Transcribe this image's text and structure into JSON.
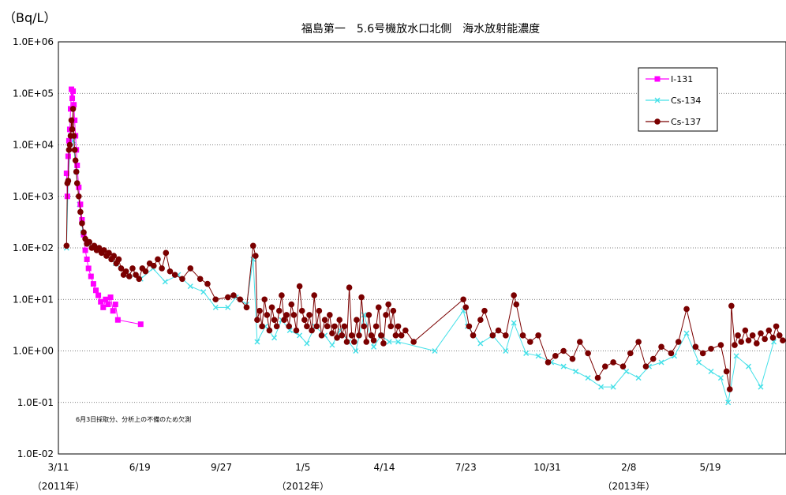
{
  "chart_data": {
    "type": "scatter",
    "title": "福島第一　5.6号機放水口北側　海水放射能濃度",
    "unit_label": "（Bq/L）",
    "y_scale": "log",
    "ylim": [
      0.01,
      1000000
    ],
    "y_ticks": [
      "1.0E+06",
      "1.0E+05",
      "1.0E+04",
      "1.0E+03",
      "1.0E+02",
      "1.0E+01",
      "1.0E+00",
      "1.0E-01",
      "1.0E-02"
    ],
    "x_ticks": [
      "3/11",
      "6/19",
      "9/27",
      "1/5",
      "4/14",
      "7/23",
      "10/31",
      "2/8",
      "5/19"
    ],
    "year_labels": [
      {
        "label": "（2011年）",
        "at": "2011-03-11"
      },
      {
        "label": "（2012年）",
        "at": "2012-01-05"
      },
      {
        "label": "（2013年）",
        "at": "2013-02-08"
      }
    ],
    "xlim": [
      "2011-03-11",
      "2013-08-20"
    ],
    "grid": "horizontal dotted",
    "legend_position": "top-right",
    "annotation": "6月3日採取分、分析上の不備のため欠測",
    "series": [
      {
        "name": "I-131",
        "color": "#ff00ff",
        "marker": "square",
        "points": [
          [
            "2011-03-21",
            2800
          ],
          [
            "2011-03-22",
            1000
          ],
          [
            "2011-03-23",
            6000
          ],
          [
            "2011-03-24",
            12000
          ],
          [
            "2011-03-25",
            20000
          ],
          [
            "2011-03-26",
            50000
          ],
          [
            "2011-03-27",
            120000
          ],
          [
            "2011-03-28",
            80000
          ],
          [
            "2011-03-29",
            110000
          ],
          [
            "2011-03-30",
            60000
          ],
          [
            "2011-03-31",
            30000
          ],
          [
            "2011-04-01",
            15000
          ],
          [
            "2011-04-02",
            8000
          ],
          [
            "2011-04-03",
            4000
          ],
          [
            "2011-04-05",
            1500
          ],
          [
            "2011-04-07",
            700
          ],
          [
            "2011-04-09",
            350
          ],
          [
            "2011-04-11",
            180
          ],
          [
            "2011-04-13",
            90
          ],
          [
            "2011-04-15",
            60
          ],
          [
            "2011-04-17",
            40
          ],
          [
            "2011-04-20",
            28
          ],
          [
            "2011-04-23",
            20
          ],
          [
            "2011-04-26",
            15
          ],
          [
            "2011-04-29",
            12
          ],
          [
            "2011-05-02",
            9
          ],
          [
            "2011-05-05",
            7
          ],
          [
            "2011-05-08",
            10
          ],
          [
            "2011-05-11",
            8
          ],
          [
            "2011-05-14",
            11
          ],
          [
            "2011-05-17",
            6
          ],
          [
            "2011-05-20",
            8
          ],
          [
            "2011-05-23",
            4
          ],
          [
            "2011-06-20",
            3.3
          ]
        ]
      },
      {
        "name": "Cs-134",
        "color": "#44e0e8",
        "marker": "x",
        "points": [
          [
            "2011-03-21",
            100
          ],
          [
            "2011-03-23",
            2000
          ],
          [
            "2011-03-26",
            15000
          ],
          [
            "2011-03-29",
            12000
          ],
          [
            "2011-04-02",
            3000
          ],
          [
            "2011-04-06",
            700
          ],
          [
            "2011-04-10",
            200
          ],
          [
            "2011-04-15",
            120
          ],
          [
            "2011-04-25",
            100
          ],
          [
            "2011-05-05",
            80
          ],
          [
            "2011-05-20",
            50
          ],
          [
            "2011-06-05",
            30
          ],
          [
            "2011-06-20",
            25
          ],
          [
            "2011-07-05",
            40
          ],
          [
            "2011-07-20",
            22
          ],
          [
            "2011-08-05",
            30
          ],
          [
            "2011-08-20",
            18
          ],
          [
            "2011-09-05",
            14
          ],
          [
            "2011-09-20",
            7
          ],
          [
            "2011-10-05",
            7
          ],
          [
            "2011-10-15",
            11
          ],
          [
            "2011-10-28",
            8
          ],
          [
            "2011-11-05",
            60
          ],
          [
            "2011-11-10",
            1.5
          ],
          [
            "2011-11-20",
            3
          ],
          [
            "2011-12-01",
            1.8
          ],
          [
            "2011-12-10",
            4
          ],
          [
            "2011-12-20",
            2.5
          ],
          [
            "2012-01-01",
            2
          ],
          [
            "2012-01-10",
            1.4
          ],
          [
            "2012-01-20",
            3
          ],
          [
            "2012-02-01",
            2
          ],
          [
            "2012-02-10",
            1.3
          ],
          [
            "2012-02-20",
            2.5
          ],
          [
            "2012-03-01",
            1.5
          ],
          [
            "2012-03-10",
            1
          ],
          [
            "2012-03-20",
            5
          ],
          [
            "2012-04-01",
            1.2
          ],
          [
            "2012-04-10",
            2
          ],
          [
            "2012-04-20",
            1.5
          ],
          [
            "2012-05-01",
            1.5
          ],
          [
            "2012-06-15",
            1
          ],
          [
            "2012-07-20",
            6
          ],
          [
            "2012-07-25",
            3
          ],
          [
            "2012-08-10",
            1.4
          ],
          [
            "2012-08-25",
            2
          ],
          [
            "2012-09-10",
            1
          ],
          [
            "2012-09-20",
            3.5
          ],
          [
            "2012-10-05",
            0.9
          ],
          [
            "2012-10-20",
            0.8
          ],
          [
            "2012-11-05",
            0.6
          ],
          [
            "2012-11-20",
            0.5
          ],
          [
            "2012-12-05",
            0.4
          ],
          [
            "2012-12-20",
            0.3
          ],
          [
            "2013-01-05",
            0.2
          ],
          [
            "2013-01-20",
            0.2
          ],
          [
            "2013-02-05",
            0.4
          ],
          [
            "2013-02-20",
            0.3
          ],
          [
            "2013-03-05",
            0.5
          ],
          [
            "2013-03-20",
            0.6
          ],
          [
            "2013-04-05",
            0.8
          ],
          [
            "2013-04-20",
            2.2
          ],
          [
            "2013-05-05",
            0.6
          ],
          [
            "2013-05-20",
            0.4
          ],
          [
            "2013-06-01",
            0.3
          ],
          [
            "2013-06-10",
            0.1
          ],
          [
            "2013-06-20",
            0.8
          ],
          [
            "2013-07-05",
            0.5
          ],
          [
            "2013-07-20",
            0.2
          ],
          [
            "2013-08-05",
            1.5
          ]
        ]
      },
      {
        "name": "Cs-137",
        "color": "#7a0000",
        "marker": "circle",
        "points": [
          [
            "2011-03-21",
            110
          ],
          [
            "2011-03-22",
            1800
          ],
          [
            "2011-03-23",
            2000
          ],
          [
            "2011-03-24",
            8000
          ],
          [
            "2011-03-25",
            10000
          ],
          [
            "2011-03-26",
            15000
          ],
          [
            "2011-03-27",
            30000
          ],
          [
            "2011-03-28",
            20000
          ],
          [
            "2011-03-29",
            50000
          ],
          [
            "2011-03-30",
            15000
          ],
          [
            "2011-03-31",
            8000
          ],
          [
            "2011-04-01",
            5000
          ],
          [
            "2011-04-02",
            3000
          ],
          [
            "2011-04-03",
            1800
          ],
          [
            "2011-04-05",
            1000
          ],
          [
            "2011-04-07",
            500
          ],
          [
            "2011-04-09",
            300
          ],
          [
            "2011-04-11",
            200
          ],
          [
            "2011-04-13",
            150
          ],
          [
            "2011-04-15",
            120
          ],
          [
            "2011-04-18",
            130
          ],
          [
            "2011-04-21",
            100
          ],
          [
            "2011-04-24",
            110
          ],
          [
            "2011-04-27",
            90
          ],
          [
            "2011-04-30",
            100
          ],
          [
            "2011-05-03",
            80
          ],
          [
            "2011-05-06",
            90
          ],
          [
            "2011-05-09",
            70
          ],
          [
            "2011-05-12",
            80
          ],
          [
            "2011-05-15",
            60
          ],
          [
            "2011-05-18",
            70
          ],
          [
            "2011-05-21",
            50
          ],
          [
            "2011-05-24",
            60
          ],
          [
            "2011-05-27",
            40
          ],
          [
            "2011-05-30",
            30
          ],
          [
            "2011-06-02",
            35
          ],
          [
            "2011-06-06",
            28
          ],
          [
            "2011-06-10",
            40
          ],
          [
            "2011-06-14",
            30
          ],
          [
            "2011-06-18",
            25
          ],
          [
            "2011-06-22",
            40
          ],
          [
            "2011-06-26",
            35
          ],
          [
            "2011-07-01",
            50
          ],
          [
            "2011-07-06",
            45
          ],
          [
            "2011-07-11",
            60
          ],
          [
            "2011-07-16",
            40
          ],
          [
            "2011-07-21",
            80
          ],
          [
            "2011-07-26",
            35
          ],
          [
            "2011-08-01",
            30
          ],
          [
            "2011-08-10",
            25
          ],
          [
            "2011-08-20",
            40
          ],
          [
            "2011-09-01",
            25
          ],
          [
            "2011-09-10",
            20
          ],
          [
            "2011-09-20",
            10
          ],
          [
            "2011-10-05",
            11
          ],
          [
            "2011-10-12",
            12
          ],
          [
            "2011-10-20",
            10
          ],
          [
            "2011-10-28",
            7
          ],
          [
            "2011-11-05",
            110
          ],
          [
            "2011-11-08",
            70
          ],
          [
            "2011-11-10",
            4
          ],
          [
            "2011-11-13",
            6
          ],
          [
            "2011-11-16",
            3
          ],
          [
            "2011-11-19",
            10
          ],
          [
            "2011-11-22",
            5
          ],
          [
            "2011-11-25",
            2.5
          ],
          [
            "2011-11-28",
            7
          ],
          [
            "2011-12-01",
            4
          ],
          [
            "2011-12-04",
            3
          ],
          [
            "2011-12-07",
            6
          ],
          [
            "2011-12-10",
            12
          ],
          [
            "2011-12-13",
            4
          ],
          [
            "2011-12-16",
            5
          ],
          [
            "2011-12-19",
            3
          ],
          [
            "2011-12-22",
            8
          ],
          [
            "2011-12-25",
            5
          ],
          [
            "2011-12-28",
            2.5
          ],
          [
            "2012-01-01",
            18
          ],
          [
            "2012-01-04",
            6
          ],
          [
            "2012-01-07",
            4
          ],
          [
            "2012-01-10",
            3
          ],
          [
            "2012-01-13",
            5
          ],
          [
            "2012-01-16",
            2.5
          ],
          [
            "2012-01-19",
            12
          ],
          [
            "2012-01-22",
            3
          ],
          [
            "2012-01-25",
            6
          ],
          [
            "2012-01-28",
            2
          ],
          [
            "2012-02-01",
            4
          ],
          [
            "2012-02-04",
            3
          ],
          [
            "2012-02-07",
            5
          ],
          [
            "2012-02-10",
            2.2
          ],
          [
            "2012-02-13",
            3
          ],
          [
            "2012-02-16",
            1.8
          ],
          [
            "2012-02-19",
            4
          ],
          [
            "2012-02-22",
            2
          ],
          [
            "2012-02-25",
            3
          ],
          [
            "2012-02-28",
            1.5
          ],
          [
            "2012-03-02",
            17
          ],
          [
            "2012-03-05",
            2
          ],
          [
            "2012-03-08",
            1.5
          ],
          [
            "2012-03-11",
            4
          ],
          [
            "2012-03-14",
            2
          ],
          [
            "2012-03-17",
            11
          ],
          [
            "2012-03-20",
            3
          ],
          [
            "2012-03-23",
            1.5
          ],
          [
            "2012-03-26",
            5
          ],
          [
            "2012-03-29",
            2
          ],
          [
            "2012-04-01",
            1.6
          ],
          [
            "2012-04-04",
            3
          ],
          [
            "2012-04-07",
            7
          ],
          [
            "2012-04-10",
            2
          ],
          [
            "2012-04-13",
            1.4
          ],
          [
            "2012-04-16",
            5
          ],
          [
            "2012-04-19",
            8
          ],
          [
            "2012-04-22",
            3
          ],
          [
            "2012-04-25",
            6
          ],
          [
            "2012-04-28",
            2
          ],
          [
            "2012-05-01",
            3
          ],
          [
            "2012-05-05",
            2
          ],
          [
            "2012-05-10",
            2.5
          ],
          [
            "2012-05-20",
            1.5
          ],
          [
            "2012-07-20",
            10
          ],
          [
            "2012-07-23",
            7
          ],
          [
            "2012-07-27",
            3
          ],
          [
            "2012-08-01",
            2
          ],
          [
            "2012-08-10",
            4
          ],
          [
            "2012-08-15",
            6
          ],
          [
            "2012-08-25",
            2
          ],
          [
            "2012-09-01",
            2.5
          ],
          [
            "2012-09-10",
            2
          ],
          [
            "2012-09-20",
            12
          ],
          [
            "2012-09-23",
            8
          ],
          [
            "2012-10-01",
            2
          ],
          [
            "2012-10-10",
            1.5
          ],
          [
            "2012-10-20",
            2
          ],
          [
            "2012-11-01",
            0.6
          ],
          [
            "2012-11-10",
            0.8
          ],
          [
            "2012-11-20",
            1
          ],
          [
            "2012-12-01",
            0.7
          ],
          [
            "2012-12-10",
            1.5
          ],
          [
            "2012-12-20",
            0.9
          ],
          [
            "2013-01-01",
            0.3
          ],
          [
            "2013-01-10",
            0.5
          ],
          [
            "2013-01-20",
            0.6
          ],
          [
            "2013-02-01",
            0.5
          ],
          [
            "2013-02-10",
            0.9
          ],
          [
            "2013-02-20",
            1.5
          ],
          [
            "2013-03-01",
            0.5
          ],
          [
            "2013-03-10",
            0.7
          ],
          [
            "2013-03-20",
            1.2
          ],
          [
            "2013-04-01",
            0.9
          ],
          [
            "2013-04-10",
            1.5
          ],
          [
            "2013-04-20",
            6.5
          ],
          [
            "2013-05-01",
            1.2
          ],
          [
            "2013-05-10",
            0.9
          ],
          [
            "2013-05-20",
            1.1
          ],
          [
            "2013-06-01",
            1.3
          ],
          [
            "2013-06-08",
            0.4
          ],
          [
            "2013-06-12",
            0.18
          ],
          [
            "2013-06-14",
            7.5
          ],
          [
            "2013-06-18",
            1.3
          ],
          [
            "2013-06-22",
            2
          ],
          [
            "2013-06-26",
            1.5
          ],
          [
            "2013-07-01",
            2.5
          ],
          [
            "2013-07-05",
            1.6
          ],
          [
            "2013-07-10",
            2
          ],
          [
            "2013-07-15",
            1.4
          ],
          [
            "2013-07-20",
            2.2
          ],
          [
            "2013-07-25",
            1.7
          ],
          [
            "2013-07-30",
            2.5
          ],
          [
            "2013-08-04",
            1.8
          ],
          [
            "2013-08-08",
            3
          ],
          [
            "2013-08-12",
            2
          ],
          [
            "2013-08-16",
            1.6
          ]
        ]
      }
    ]
  }
}
